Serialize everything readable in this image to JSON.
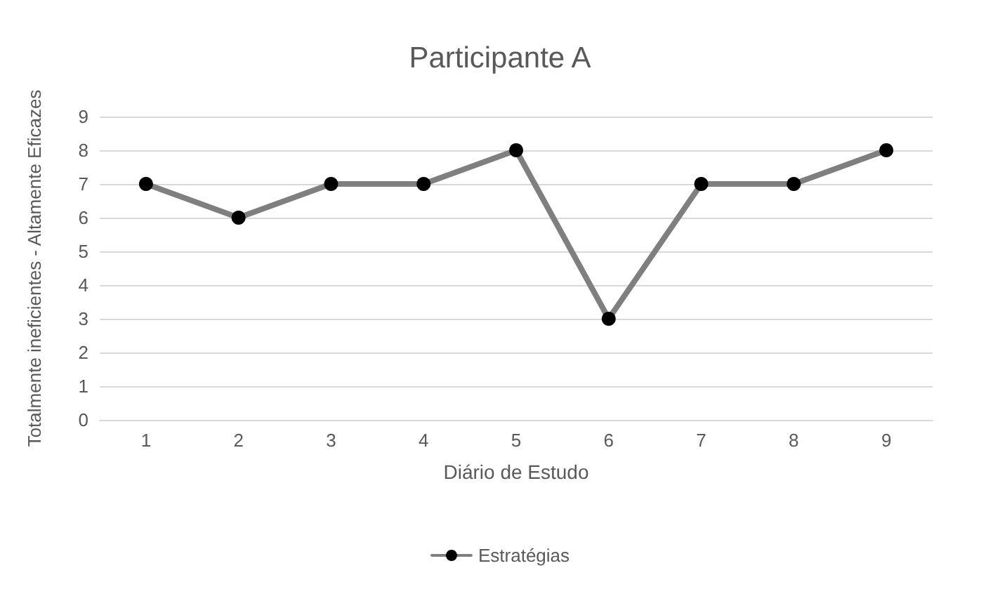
{
  "chart_data": {
    "type": "line",
    "title": "Participante A",
    "xlabel": "Diário de Estudo",
    "ylabel": "Totalmente ineficientes - Altamente Eficazes",
    "categories": [
      "1",
      "2",
      "3",
      "4",
      "5",
      "6",
      "7",
      "8",
      "9"
    ],
    "series": [
      {
        "name": "Estratégias",
        "color": "#7f7f7f",
        "values": [
          7,
          6,
          7,
          7,
          8,
          3,
          7,
          7,
          8
        ]
      }
    ],
    "ylim": [
      0,
      9
    ],
    "yticks": [
      0,
      1,
      2,
      3,
      4,
      5,
      6,
      7,
      8,
      9
    ],
    "grid": "y",
    "legend": "bottom",
    "marker": "circle",
    "line_style": "solid"
  }
}
